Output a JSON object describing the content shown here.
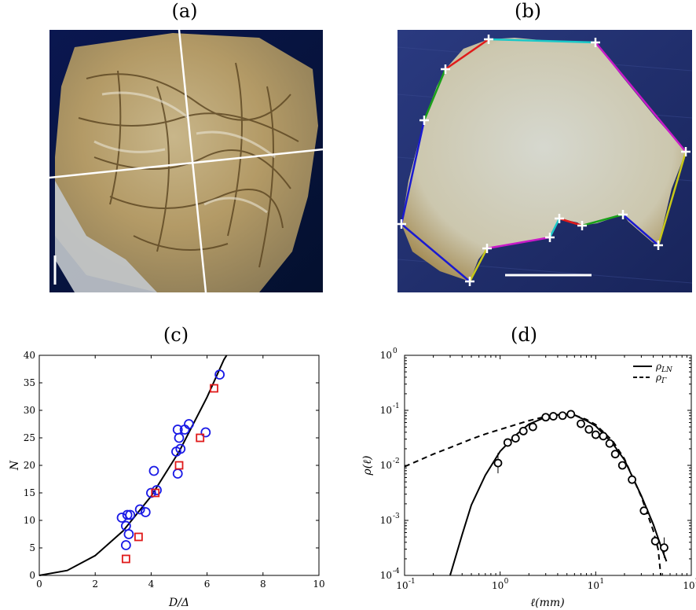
{
  "panels": {
    "a": {
      "label": "(a)"
    },
    "b": {
      "label": "(b)"
    },
    "c": {
      "label": "(c)"
    },
    "d": {
      "label": "(d)"
    }
  },
  "colors": {
    "photo_a_background": "#0b1a5a",
    "photo_b_background": "#1d2a6b",
    "paper": "#d8d1bb",
    "series_circle": "#1a1ae6",
    "series_square": "#e01a1a",
    "fit_curve": "#000000"
  },
  "photo_b": {
    "segment_colors": [
      "#1a1ad0",
      "#1aa01a",
      "#e01a1a",
      "#1ac8c8",
      "#c81ac8",
      "#c8c81a"
    ]
  },
  "chart_data": [
    {
      "type": "scatter",
      "panel": "c",
      "xlabel": "D/Δ",
      "ylabel": "N",
      "xlim": [
        0,
        10
      ],
      "ylim": [
        0,
        40
      ],
      "xticks": [
        "0",
        "2",
        "4",
        "6",
        "8",
        "10"
      ],
      "yticks": [
        "0",
        "5",
        "10",
        "15",
        "20",
        "25",
        "30",
        "35",
        "40"
      ],
      "grid": false,
      "series": [
        {
          "marker": "circle",
          "color": "#1a1ae6",
          "points": [
            [
              2.95,
              10.5
            ],
            [
              3.1,
              9.0
            ],
            [
              3.1,
              5.5
            ],
            [
              3.15,
              11.0
            ],
            [
              3.2,
              7.5
            ],
            [
              3.25,
              11.0
            ],
            [
              3.6,
              12.0
            ],
            [
              3.8,
              11.5
            ],
            [
              4.0,
              15.0
            ],
            [
              4.1,
              19.0
            ],
            [
              4.2,
              15.5
            ],
            [
              4.9,
              22.5
            ],
            [
              4.95,
              18.5
            ],
            [
              4.95,
              26.5
            ],
            [
              5.0,
              25.0
            ],
            [
              5.05,
              23.0
            ],
            [
              5.2,
              26.5
            ],
            [
              5.35,
              27.5
            ],
            [
              5.95,
              26.0
            ],
            [
              6.45,
              36.5
            ]
          ]
        },
        {
          "marker": "square",
          "color": "#e01a1a",
          "points": [
            [
              3.1,
              3.0
            ],
            [
              3.55,
              7.0
            ],
            [
              4.15,
              15.0
            ],
            [
              5.0,
              20.0
            ],
            [
              5.75,
              25.0
            ],
            [
              6.25,
              34.0
            ]
          ]
        }
      ],
      "fit": {
        "color": "#000000",
        "points": [
          [
            0,
            0
          ],
          [
            1,
            0.9
          ],
          [
            2,
            3.6
          ],
          [
            3,
            8.1
          ],
          [
            4,
            14.4
          ],
          [
            5,
            22.5
          ],
          [
            6,
            32.4
          ],
          [
            6.6,
            39.2
          ],
          [
            6.7,
            40
          ]
        ]
      }
    },
    {
      "type": "line",
      "panel": "d",
      "xlabel": "ℓ(mm)",
      "ylabel": "ρ(ℓ)",
      "xscale": "log",
      "yscale": "log",
      "xlim": [
        0.1,
        100
      ],
      "ylim": [
        0.0001,
        1
      ],
      "xticks": [
        "10",
        "10",
        "10",
        "10"
      ],
      "xtick_exponents": [
        "-1",
        "0",
        "1",
        "2"
      ],
      "yticks": [
        "10",
        "10",
        "10",
        "10",
        "10"
      ],
      "ytick_exponents": [
        "-4",
        "-3",
        "-2",
        "-1",
        "0"
      ],
      "grid": false,
      "legend_position": "top-right",
      "legend": [
        {
          "style": "solid",
          "label": "ρ",
          "subscript": "LN"
        },
        {
          "style": "dashed",
          "label": "ρ",
          "subscript": "Γ"
        }
      ],
      "series": [
        {
          "name": "data",
          "marker": "open-circle",
          "points": [
            [
              0.95,
              0.011
            ],
            [
              1.2,
              0.026
            ],
            [
              1.45,
              0.031
            ],
            [
              1.75,
              0.042
            ],
            [
              2.2,
              0.05
            ],
            [
              3.0,
              0.075
            ],
            [
              3.6,
              0.078
            ],
            [
              4.5,
              0.08
            ],
            [
              5.5,
              0.085
            ],
            [
              7.0,
              0.057
            ],
            [
              8.5,
              0.045
            ],
            [
              10.0,
              0.036
            ],
            [
              12.0,
              0.034
            ],
            [
              14.0,
              0.025
            ],
            [
              16.0,
              0.016
            ],
            [
              19.0,
              0.01
            ],
            [
              24.0,
              0.0055
            ],
            [
              32.0,
              0.0015
            ],
            [
              42.0,
              0.00042
            ],
            [
              52.0,
              0.00032
            ]
          ]
        },
        {
          "name": "lognormal",
          "style": "solid",
          "points": [
            [
              0.3,
              0.0001
            ],
            [
              0.4,
              0.00055
            ],
            [
              0.5,
              0.0019
            ],
            [
              0.7,
              0.0066
            ],
            [
              1.0,
              0.018
            ],
            [
              1.5,
              0.037
            ],
            [
              2.0,
              0.056
            ],
            [
              3.0,
              0.075
            ],
            [
              4.0,
              0.083
            ],
            [
              5.0,
              0.085
            ],
            [
              6.0,
              0.082
            ],
            [
              8.0,
              0.065
            ],
            [
              10.0,
              0.052
            ],
            [
              15.0,
              0.025
            ],
            [
              20.0,
              0.0125
            ],
            [
              30.0,
              0.0028
            ],
            [
              40.0,
              0.00085
            ],
            [
              50.0,
              0.00028
            ],
            [
              55.0,
              0.00018
            ]
          ]
        },
        {
          "name": "gamma",
          "style": "dashed",
          "points": [
            [
              0.1,
              0.0095
            ],
            [
              0.2,
              0.016
            ],
            [
              0.3,
              0.021
            ],
            [
              0.5,
              0.03
            ],
            [
              0.7,
              0.037
            ],
            [
              1.0,
              0.045
            ],
            [
              2.0,
              0.065
            ],
            [
              3.0,
              0.077
            ],
            [
              4.0,
              0.083
            ],
            [
              5.0,
              0.085
            ],
            [
              6.0,
              0.082
            ],
            [
              8.0,
              0.068
            ],
            [
              10.0,
              0.055
            ],
            [
              15.0,
              0.028
            ],
            [
              20.0,
              0.013
            ],
            [
              30.0,
              0.0027
            ],
            [
              40.0,
              0.00065
            ],
            [
              45.0,
              0.0003
            ],
            [
              48.0,
              0.0001
            ]
          ]
        }
      ]
    }
  ]
}
